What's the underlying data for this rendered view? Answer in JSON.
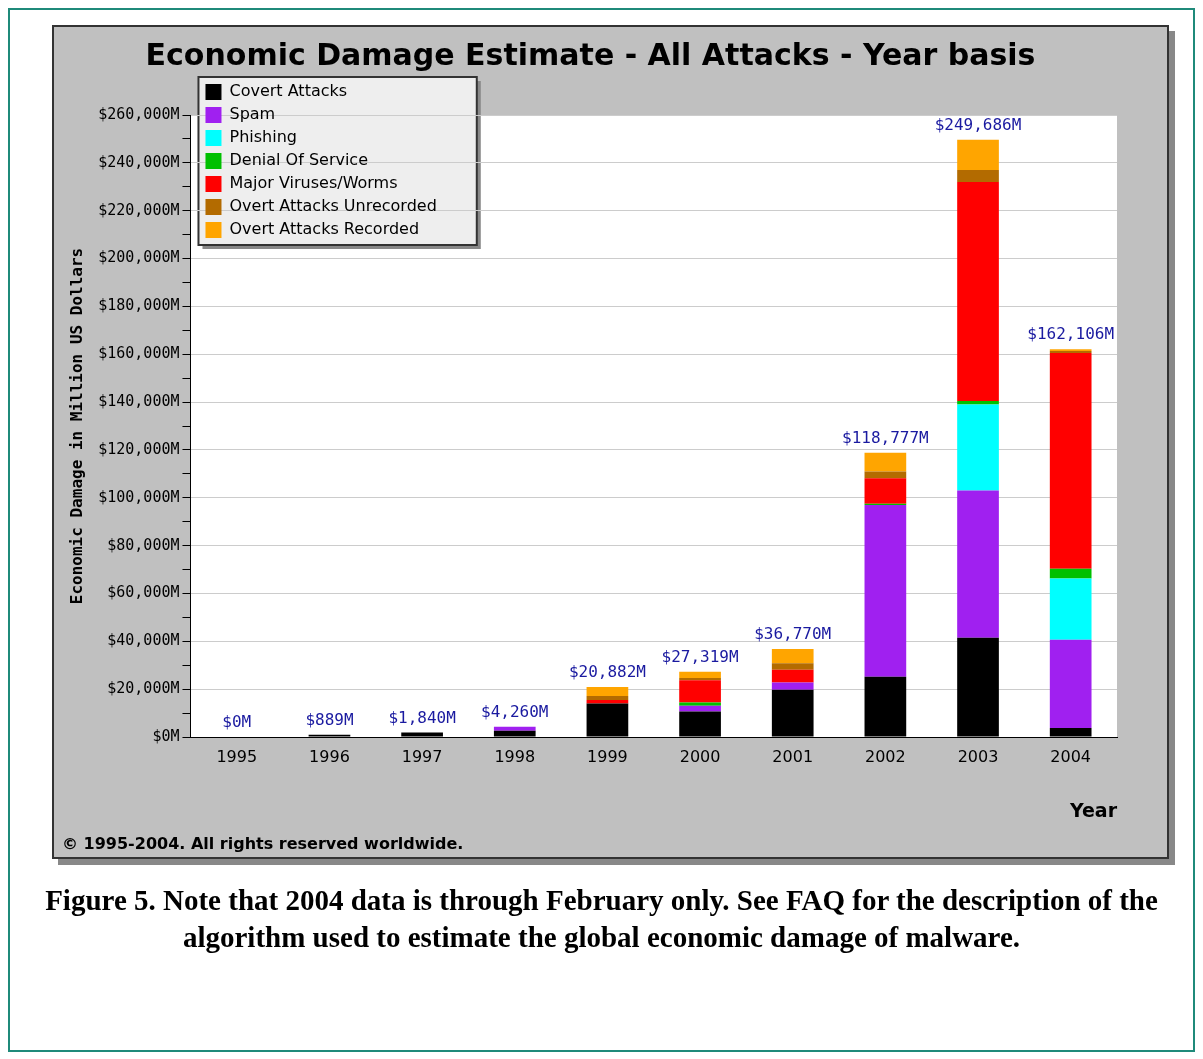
{
  "chart_data": {
    "type": "bar",
    "title": "Economic Damage Estimate - All Attacks - Year basis",
    "xlabel": "Year",
    "ylabel": "Economic Damage in Million US Dollars",
    "categories": [
      "1995",
      "1996",
      "1997",
      "1998",
      "1999",
      "2000",
      "2001",
      "2002",
      "2003",
      "2004"
    ],
    "stacked": true,
    "series": [
      {
        "name": "Covert Attacks",
        "color": "#000000",
        "values": [
          0,
          889,
          1840,
          2600,
          14000,
          10700,
          19700,
          25200,
          41500,
          3800
        ]
      },
      {
        "name": "Spam",
        "color": "#a020f0",
        "values": [
          0,
          0,
          0,
          1660,
          0,
          2400,
          3100,
          71800,
          61500,
          36900
        ]
      },
      {
        "name": "Phishing",
        "color": "#00ffff",
        "values": [
          0,
          0,
          0,
          0,
          0,
          0,
          0,
          0,
          36000,
          25600
        ]
      },
      {
        "name": "Denial Of Service",
        "color": "#00c000",
        "values": [
          0,
          0,
          0,
          0,
          0,
          1300,
          0,
          500,
          1500,
          4000
        ]
      },
      {
        "name": "Major Viruses/Worms",
        "color": "#ff0000",
        "values": [
          0,
          0,
          0,
          0,
          1500,
          9300,
          5300,
          10700,
          91500,
          90200
        ]
      },
      {
        "name": "Overt Attacks Unrecorded",
        "color": "#b36b00",
        "values": [
          0,
          0,
          0,
          0,
          1600,
          1000,
          2700,
          2800,
          5000,
          900
        ]
      },
      {
        "name": "Overt Attacks Recorded",
        "color": "#ffa500",
        "values": [
          0,
          0,
          0,
          0,
          3782,
          2619,
          5970,
          7777,
          12686,
          706
        ]
      }
    ],
    "totals": [
      "$0M",
      "$889M",
      "$1,840M",
      "$4,260M",
      "$20,882M",
      "$27,319M",
      "$36,770M",
      "$118,777M",
      "$249,686M",
      "$162,106M"
    ],
    "ylim": [
      0,
      260000
    ],
    "yticks": [
      {
        "value": 0,
        "label": "$0M"
      },
      {
        "value": 10000,
        "label": null
      },
      {
        "value": 20000,
        "label": "$20,000M"
      },
      {
        "value": 30000,
        "label": null
      },
      {
        "value": 40000,
        "label": "$40,000M"
      },
      {
        "value": 50000,
        "label": null
      },
      {
        "value": 60000,
        "label": "$60,000M"
      },
      {
        "value": 70000,
        "label": null
      },
      {
        "value": 80000,
        "label": "$80,000M"
      },
      {
        "value": 90000,
        "label": null
      },
      {
        "value": 100000,
        "label": "$100,000M"
      },
      {
        "value": 110000,
        "label": null
      },
      {
        "value": 120000,
        "label": "$120,000M"
      },
      {
        "value": 130000,
        "label": null
      },
      {
        "value": 140000,
        "label": "$140,000M"
      },
      {
        "value": 150000,
        "label": null
      },
      {
        "value": 160000,
        "label": "$160,000M"
      },
      {
        "value": 170000,
        "label": null
      },
      {
        "value": 180000,
        "label": "$180,000M"
      },
      {
        "value": 190000,
        "label": null
      },
      {
        "value": 200000,
        "label": "$200,000M"
      },
      {
        "value": 210000,
        "label": null
      },
      {
        "value": 220000,
        "label": "$220,000M"
      },
      {
        "value": 230000,
        "label": null
      },
      {
        "value": 240000,
        "label": "$240,000M"
      },
      {
        "value": 250000,
        "label": null
      },
      {
        "value": 260000,
        "label": "$260,000M"
      }
    ],
    "grid": "y",
    "legend": "top left",
    "annotations": [
      "© 1995-2004. All rights reserved worldwide.",
      "Figure 5. Note that 2004 data is through February only. See FAQ for the description of the algorithm used to estimate the global economic damage of malware."
    ]
  }
}
